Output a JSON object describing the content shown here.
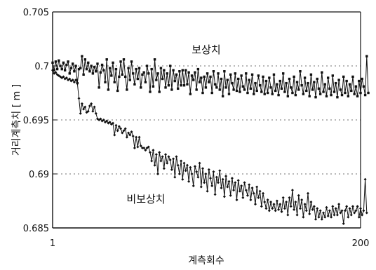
{
  "chart_data": {
    "type": "line",
    "xlabel": "계측회수",
    "ylabel": "거리계측치 [ m ]",
    "xlim": [
      1,
      200
    ],
    "ylim": [
      0.685,
      0.705
    ],
    "x_ticks": [
      "1",
      "200"
    ],
    "y_ticks": [
      "0.685",
      "0.69",
      "0.695",
      "0.7",
      "0.705"
    ],
    "grid": "dotted horizontal at 0.69, 0.695 and 0.7",
    "annotations": [
      "보상치",
      "비보상치"
    ],
    "series": [
      {
        "name": "보상치",
        "marker": "square",
        "color": "#111111",
        "x_start": 1,
        "values": [
          0.7003,
          0.6996,
          0.7004,
          0.6997,
          0.7005,
          0.7,
          0.6997,
          0.7003,
          0.6996,
          0.7001,
          0.7004,
          0.6993,
          0.6998,
          0.7002,
          0.6995,
          0.7,
          0.6984,
          0.6997,
          0.6998,
          0.7009,
          0.6992,
          0.7006,
          0.6997,
          0.7003,
          0.6995,
          0.7,
          0.6993,
          0.6999,
          0.6995,
          0.7002,
          0.698,
          0.6994,
          0.7001,
          0.6996,
          0.6985,
          0.7006,
          0.6978,
          0.6998,
          0.6991,
          0.7003,
          0.6985,
          0.6997,
          0.6977,
          0.699,
          0.7004,
          0.6992,
          0.7006,
          0.699,
          0.6978,
          0.6998,
          0.6987,
          0.7004,
          0.6993,
          0.6983,
          0.6997,
          0.6988,
          0.6998,
          0.698,
          0.6992,
          0.6994,
          0.6985,
          0.7,
          0.6993,
          0.6976,
          0.6997,
          0.6981,
          0.7006,
          0.6987,
          0.6993,
          0.6976,
          0.6998,
          0.6988,
          0.6996,
          0.698,
          0.6993,
          0.6982,
          0.7,
          0.6978,
          0.6996,
          0.6986,
          0.6992,
          0.6979,
          0.6995,
          0.6982,
          0.6996,
          0.6982,
          0.6996,
          0.6983,
          0.6994,
          0.6974,
          0.6991,
          0.6987,
          0.6994,
          0.6978,
          0.6997,
          0.6985,
          0.6989,
          0.6975,
          0.699,
          0.698,
          0.6993,
          0.6985,
          0.699,
          0.6975,
          0.6995,
          0.6983,
          0.698,
          0.6993,
          0.6978,
          0.6988,
          0.6972,
          0.6995,
          0.698,
          0.6987,
          0.6974,
          0.6992,
          0.6984,
          0.6978,
          0.6993,
          0.6977,
          0.6988,
          0.6976,
          0.6991,
          0.6981,
          0.6978,
          0.6993,
          0.6975,
          0.6987,
          0.6979,
          0.6992,
          0.6974,
          0.6984,
          0.6977,
          0.6991,
          0.6982,
          0.6976,
          0.699,
          0.6974,
          0.6986,
          0.6975,
          0.6989,
          0.698,
          0.6974,
          0.6992,
          0.6977,
          0.6983,
          0.6973,
          0.6986,
          0.6979,
          0.6993,
          0.6976,
          0.6984,
          0.6972,
          0.6988,
          0.698,
          0.6975,
          0.699,
          0.6973,
          0.6985,
          0.6978,
          0.6995,
          0.6982,
          0.6974,
          0.6989,
          0.6977,
          0.6984,
          0.6972,
          0.6992,
          0.6978,
          0.6985,
          0.6971,
          0.6988,
          0.6979,
          0.6974,
          0.6994,
          0.6976,
          0.6983,
          0.6972,
          0.6989,
          0.6979,
          0.6973,
          0.6991,
          0.6976,
          0.6984,
          0.6971,
          0.6987,
          0.6978,
          0.6973,
          0.699,
          0.6975,
          0.6986,
          0.6972,
          0.6983,
          0.6977,
          0.699,
          0.6974,
          0.6981,
          0.6972,
          0.6986,
          0.6975,
          0.6988,
          0.6981,
          0.6973,
          0.7009,
          0.6975
        ]
      },
      {
        "name": "비보상치",
        "marker": "diamond",
        "color": "#111111",
        "x_start": 1,
        "values": [
          0.6996,
          0.6993,
          0.6994,
          0.6992,
          0.6991,
          0.699,
          0.6989,
          0.699,
          0.6988,
          0.6989,
          0.6987,
          0.6988,
          0.6986,
          0.6987,
          0.6985,
          0.6987,
          0.6984,
          0.697,
          0.6956,
          0.6965,
          0.696,
          0.6962,
          0.6957,
          0.6958,
          0.6963,
          0.6965,
          0.6958,
          0.6962,
          0.6956,
          0.6951,
          0.695,
          0.6951,
          0.6949,
          0.695,
          0.6948,
          0.6949,
          0.6947,
          0.6948,
          0.6946,
          0.6947,
          0.6936,
          0.6945,
          0.694,
          0.6944,
          0.6942,
          0.6938,
          0.694,
          0.6942,
          0.6934,
          0.6938,
          0.6936,
          0.6939,
          0.6935,
          0.6924,
          0.6934,
          0.6925,
          0.6934,
          0.6926,
          0.6924,
          0.6924,
          0.6922,
          0.6924,
          0.6925,
          0.692,
          0.6912,
          0.6922,
          0.6908,
          0.6918,
          0.69,
          0.692,
          0.6912,
          0.6916,
          0.6905,
          0.6918,
          0.691,
          0.6916,
          0.6913,
          0.6904,
          0.6914,
          0.6897,
          0.6916,
          0.6908,
          0.69,
          0.6912,
          0.6895,
          0.691,
          0.6903,
          0.6908,
          0.6893,
          0.6906,
          0.69,
          0.6889,
          0.6907,
          0.6902,
          0.6897,
          0.691,
          0.6888,
          0.6905,
          0.6892,
          0.69,
          0.6884,
          0.6904,
          0.6896,
          0.6889,
          0.6902,
          0.6881,
          0.6897,
          0.6892,
          0.6903,
          0.6887,
          0.6895,
          0.6879,
          0.6898,
          0.6888,
          0.6893,
          0.688,
          0.6896,
          0.6885,
          0.6892,
          0.6876,
          0.6894,
          0.6884,
          0.6889,
          0.6878,
          0.6892,
          0.6885,
          0.688,
          0.689,
          0.6876,
          0.6887,
          0.6882,
          0.6872,
          0.6888,
          0.6878,
          0.6884,
          0.687,
          0.6882,
          0.6874,
          0.6868,
          0.6876,
          0.6866,
          0.6874,
          0.6868,
          0.6872,
          0.6866,
          0.6875,
          0.6867,
          0.6872,
          0.6865,
          0.6878,
          0.6868,
          0.6874,
          0.6862,
          0.6878,
          0.687,
          0.6885,
          0.6867,
          0.6874,
          0.6862,
          0.688,
          0.6868,
          0.6876,
          0.686,
          0.6872,
          0.6866,
          0.6882,
          0.6863,
          0.6874,
          0.6867,
          0.687,
          0.6858,
          0.6868,
          0.686,
          0.6866,
          0.6858,
          0.6864,
          0.686,
          0.6869,
          0.6861,
          0.6866,
          0.686,
          0.687,
          0.6862,
          0.6868,
          0.6862,
          0.6872,
          0.6864,
          0.6866,
          0.6854,
          0.6866,
          0.687,
          0.686,
          0.6868,
          0.6862,
          0.687,
          0.6864,
          0.6866,
          0.687,
          0.686,
          0.6868,
          0.6862,
          0.6866,
          0.6895,
          0.6864
        ]
      }
    ]
  }
}
